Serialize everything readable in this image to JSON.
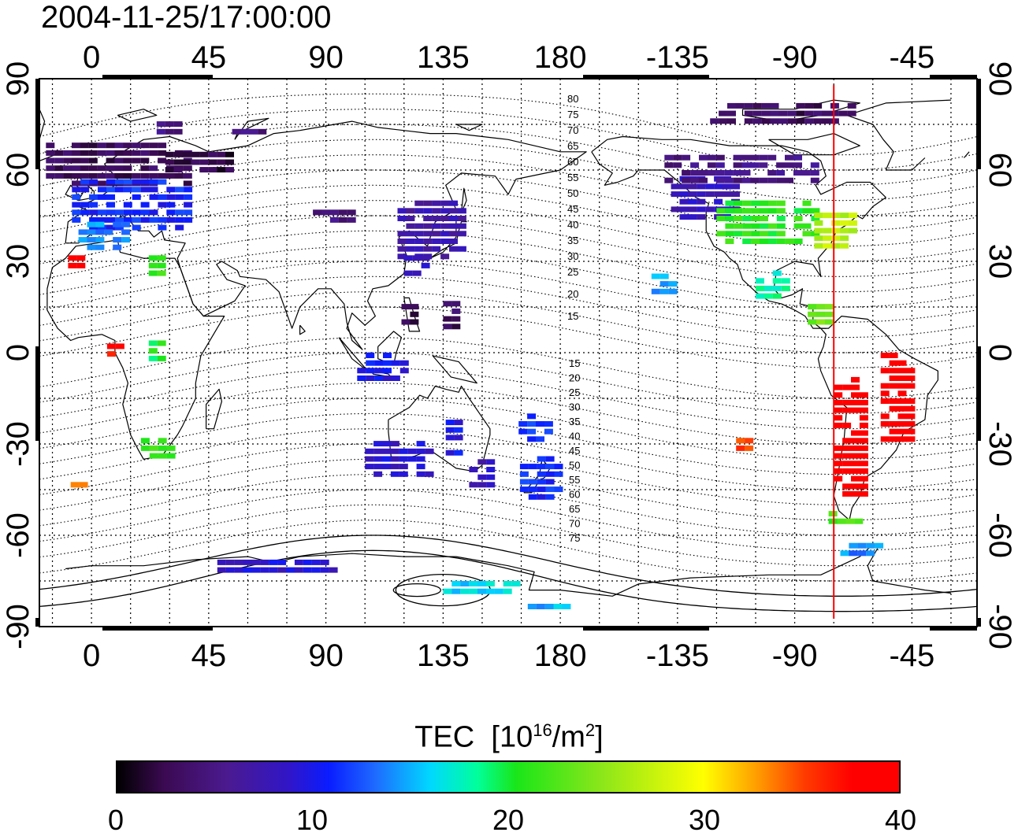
{
  "title": "2004-11-25/17:00:00",
  "map": {
    "top_lon_ticks": [
      "0",
      "45",
      "90",
      "135",
      "180",
      "-135",
      "-90",
      "-45"
    ],
    "bottom_lon_ticks": [
      "0",
      "45",
      "90",
      "135",
      "180",
      "-135",
      "-90",
      "-45"
    ],
    "left_lat_ticks": [
      "90",
      "60",
      "30",
      "0",
      "-30",
      "-60",
      "-90"
    ],
    "right_lat_ticks": [
      "90",
      "60",
      "30",
      "0",
      "-30",
      "-60",
      "-90"
    ],
    "lon_range": [
      -20,
      340
    ],
    "lat_range": [
      -90,
      90
    ],
    "grid_step_deg": 15,
    "terminator_lon": -75,
    "terminator_color": "#ff0000",
    "contour_labels_north": [
      "80",
      "75",
      "70",
      "65",
      "60",
      "55",
      "50",
      "45",
      "40",
      "35",
      "30",
      "25",
      "20",
      "15"
    ],
    "contour_labels_south": [
      "15",
      "20",
      "25",
      "30",
      "35",
      "40",
      "45",
      "50",
      "55",
      "60",
      "65",
      "70",
      "75"
    ]
  },
  "colorbar": {
    "title": "TEC",
    "unit_base": "10",
    "unit_exp": "16",
    "unit_sep": "/m",
    "unit_exp2": "2",
    "ticks": [
      "0",
      "10",
      "20",
      "30",
      "40"
    ],
    "range": [
      0,
      40
    ]
  },
  "tec_patches": [
    {
      "lon": 10,
      "lat": 62,
      "w": 55,
      "h": 14,
      "tec": 3
    },
    {
      "lon": 40,
      "lat": 62,
      "w": 30,
      "h": 8,
      "tec": 2
    },
    {
      "lon": 15,
      "lat": 48,
      "w": 45,
      "h": 18,
      "tec": 11
    },
    {
      "lon": 5,
      "lat": 38,
      "w": 20,
      "h": 10,
      "tec": 14
    },
    {
      "lon": 30,
      "lat": 74,
      "w": 10,
      "h": 4,
      "tec": 5
    },
    {
      "lon": 60,
      "lat": 72,
      "w": 12,
      "h": 3,
      "tec": 5
    },
    {
      "lon": 95,
      "lat": 44,
      "w": 20,
      "h": 6,
      "tec": 5
    },
    {
      "lon": 130,
      "lat": 40,
      "w": 25,
      "h": 20,
      "tec": 7
    },
    {
      "lon": 125,
      "lat": 28,
      "w": 10,
      "h": 8,
      "tec": 8
    },
    {
      "lon": 122,
      "lat": 12,
      "w": 6,
      "h": 8,
      "tec": 2
    },
    {
      "lon": 138,
      "lat": 12,
      "w": 6,
      "h": 10,
      "tec": 3
    },
    {
      "lon": 112,
      "lat": -5,
      "w": 20,
      "h": 10,
      "tec": 10
    },
    {
      "lon": 120,
      "lat": -35,
      "w": 30,
      "h": 12,
      "tec": 9
    },
    {
      "lon": 140,
      "lat": -28,
      "w": 8,
      "h": 12,
      "tec": 10
    },
    {
      "lon": 172,
      "lat": -42,
      "w": 15,
      "h": 16,
      "tec": 11
    },
    {
      "lon": 170,
      "lat": -25,
      "w": 12,
      "h": 10,
      "tec": 12
    },
    {
      "lon": 150,
      "lat": -40,
      "w": 10,
      "h": 10,
      "tec": 8
    },
    {
      "lon": 25,
      "lat": 28,
      "w": 6,
      "h": 8,
      "tec": 22
    },
    {
      "lon": -5,
      "lat": 30,
      "w": 8,
      "h": 4,
      "tec": 38
    },
    {
      "lon": 10,
      "lat": 0,
      "w": 8,
      "h": 6,
      "tec": 37
    },
    {
      "lon": 25,
      "lat": 0,
      "w": 6,
      "h": 8,
      "tec": 20
    },
    {
      "lon": 25,
      "lat": -32,
      "w": 12,
      "h": 8,
      "tec": 21
    },
    {
      "lon": -5,
      "lat": -44,
      "w": 6,
      "h": 3,
      "tec": 33
    },
    {
      "lon": 235,
      "lat": 50,
      "w": 25,
      "h": 16,
      "tec": 8
    },
    {
      "lon": 260,
      "lat": 42,
      "w": 40,
      "h": 16,
      "tec": 21
    },
    {
      "lon": 285,
      "lat": 40,
      "w": 15,
      "h": 12,
      "tec": 27
    },
    {
      "lon": 250,
      "lat": 60,
      "w": 60,
      "h": 10,
      "tec": 5
    },
    {
      "lon": 265,
      "lat": 78,
      "w": 55,
      "h": 8,
      "tec": 3
    },
    {
      "lon": 262,
      "lat": 22,
      "w": 14,
      "h": 10,
      "tec": 18
    },
    {
      "lon": 280,
      "lat": 12,
      "w": 10,
      "h": 8,
      "tec": 24
    },
    {
      "lon": 292,
      "lat": -28,
      "w": 14,
      "h": 40,
      "tec": 39
    },
    {
      "lon": 310,
      "lat": -15,
      "w": 14,
      "h": 30,
      "tec": 39
    },
    {
      "lon": 290,
      "lat": -55,
      "w": 14,
      "h": 6,
      "tec": 22
    },
    {
      "lon": 295,
      "lat": -65,
      "w": 15,
      "h": 5,
      "tec": 14
    },
    {
      "lon": 220,
      "lat": 22,
      "w": 10,
      "h": 8,
      "tec": 15
    },
    {
      "lon": 250,
      "lat": -30,
      "w": 5,
      "h": 4,
      "tec": 35
    },
    {
      "lon": 70,
      "lat": -70,
      "w": 50,
      "h": 4,
      "tec": 9
    },
    {
      "lon": 150,
      "lat": -77,
      "w": 30,
      "h": 4,
      "tec": 16
    },
    {
      "lon": 175,
      "lat": -84,
      "w": 15,
      "h": 3,
      "tec": 15
    }
  ]
}
